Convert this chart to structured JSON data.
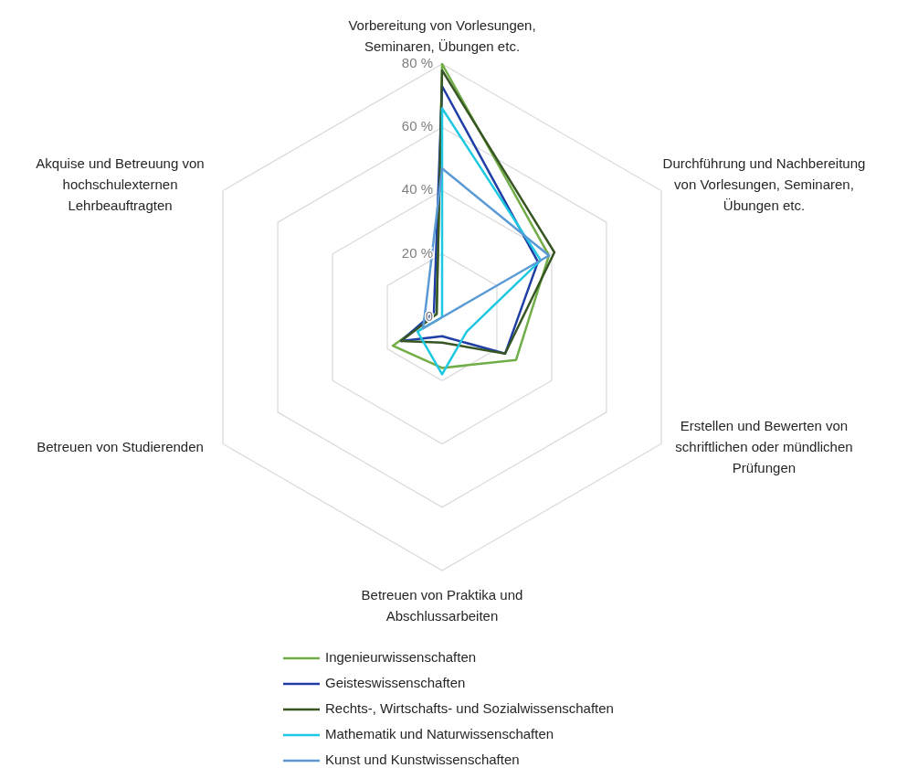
{
  "chart_data": {
    "type": "radar",
    "categories": [
      "Vorbereitung von Vorlesungen, Seminaren, Übungen etc.",
      "Durchführung und Nachbereitung von Vorlesungen, Seminaren, Übungen etc.",
      "Erstellen und Bewerten von schriftlichen oder mündlichen Prüfungen",
      "Betreuen von Praktika und Abschlussarbeiten",
      "Betreuen von Studierenden",
      "Akquise und Betreuung von hochschulexternen Lehrbeauftragten"
    ],
    "series": [
      {
        "name": "Ingenieurwissenschaften",
        "color": "#70ad47",
        "values": [
          80,
          39,
          27,
          16,
          18,
          2
        ]
      },
      {
        "name": "Geisteswissenschaften",
        "color": "#1f3ea6",
        "values": [
          73,
          35,
          23,
          6,
          15,
          3
        ]
      },
      {
        "name": "Rechts-, Wirtschafts- und Sozialwissenschaften",
        "color": "#375623",
        "values": [
          78,
          41,
          23,
          8,
          15,
          2
        ]
      },
      {
        "name": "Mathematik und Naturwissenschaften",
        "color": "#1ec8e3",
        "values": [
          66,
          36,
          9,
          18,
          9,
          0
        ]
      },
      {
        "name": "Kunst und Kunstwissenschaften",
        "color": "#5b9bd5",
        "values": [
          47,
          39,
          0,
          0,
          7,
          6
        ]
      }
    ],
    "ylim": [
      0,
      80
    ],
    "yticks": [
      {
        "value": 0,
        "label": "0"
      },
      {
        "value": 20,
        "label": "20 %"
      },
      {
        "value": 40,
        "label": "40 %"
      },
      {
        "value": 60,
        "label": "60 %"
      },
      {
        "value": 80,
        "label": "80 %"
      }
    ],
    "grid": true,
    "legend": "bottom"
  }
}
